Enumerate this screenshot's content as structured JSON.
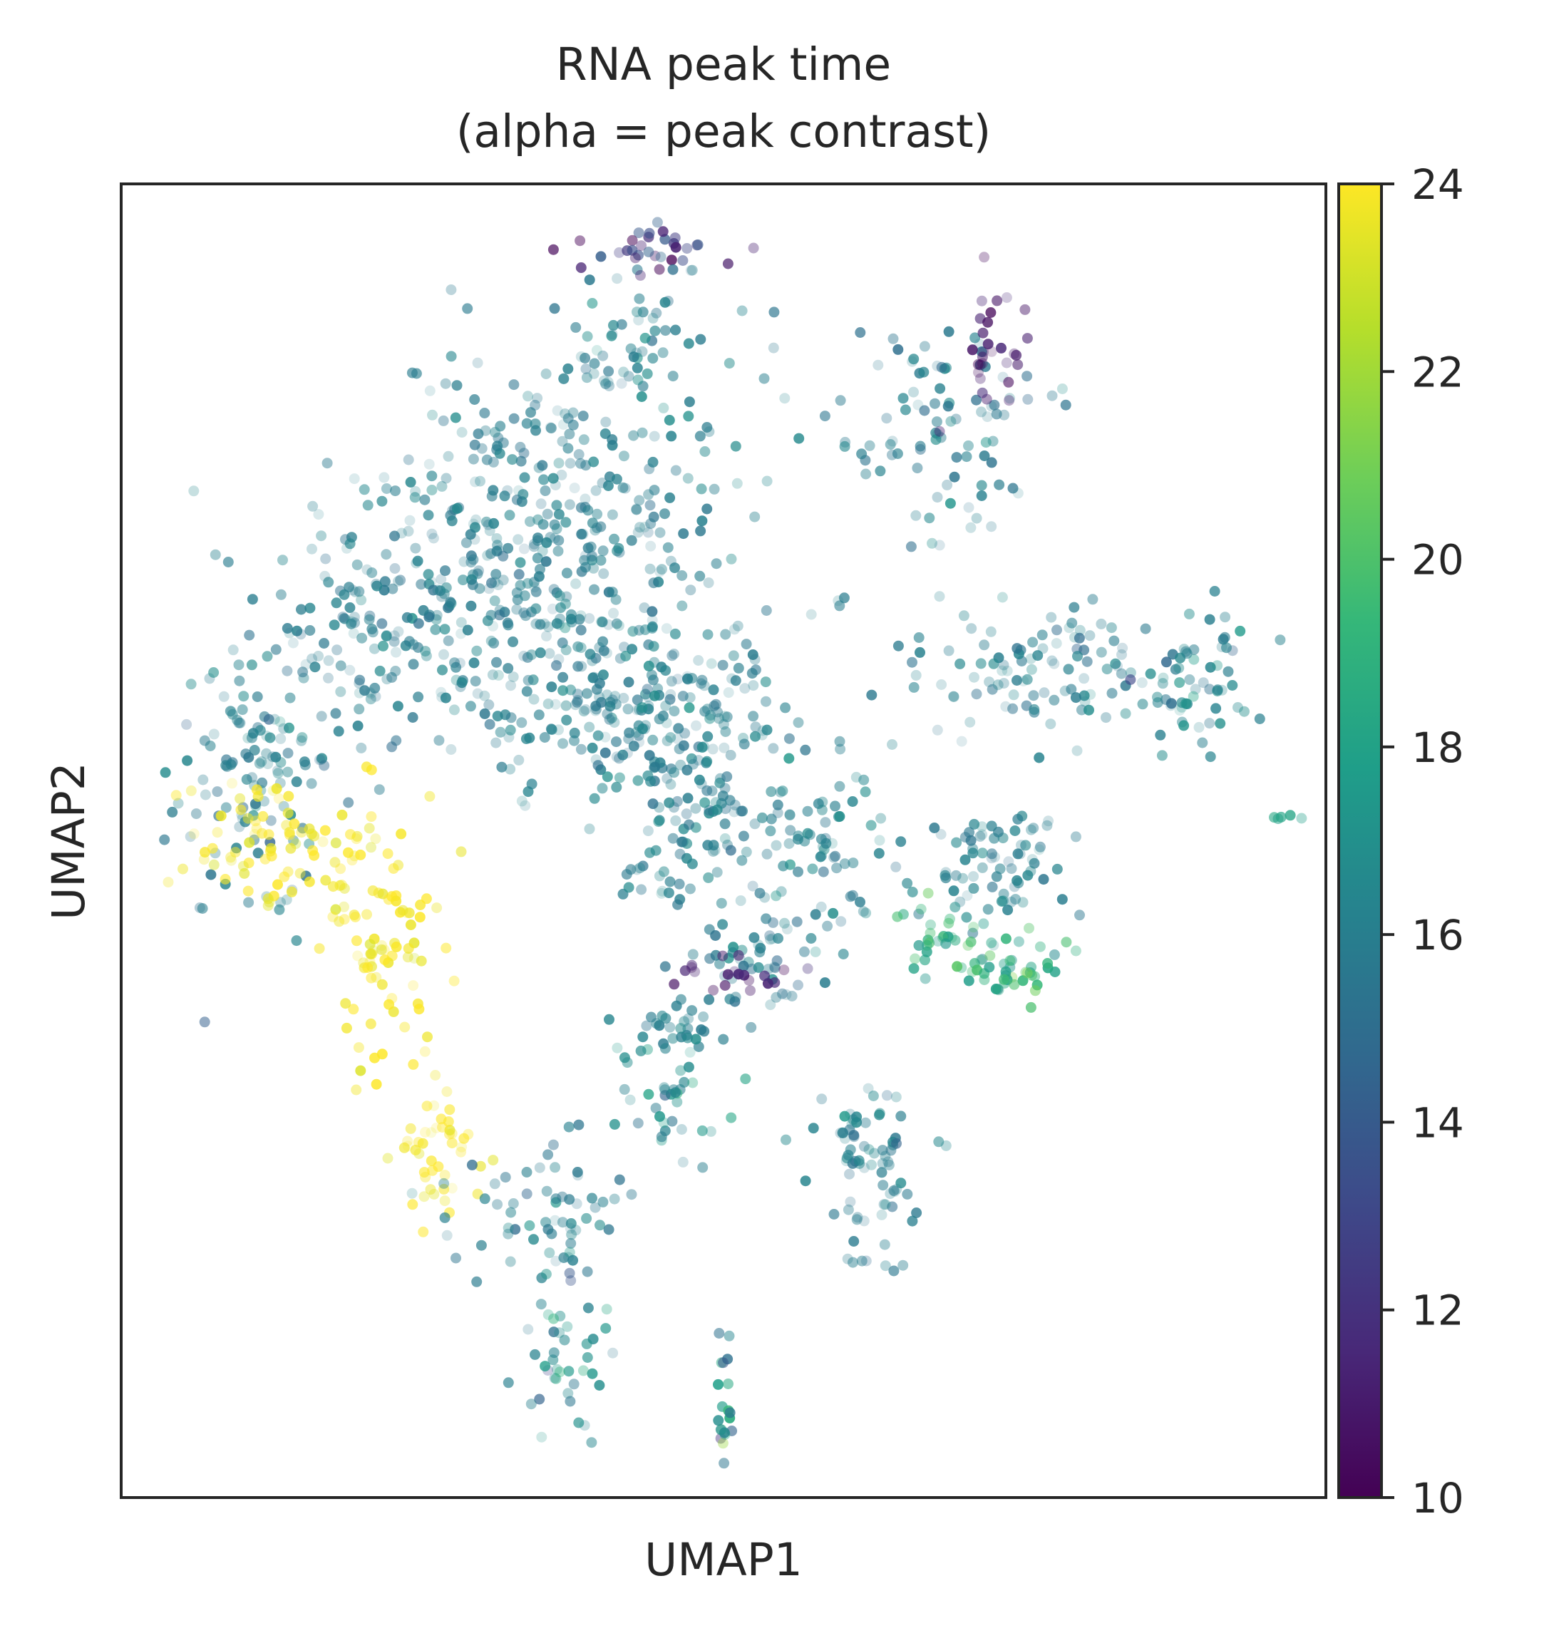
{
  "chart_data": {
    "type": "scatter",
    "title_line1": "RNA peak time",
    "title_line2": "(alpha = peak contrast)",
    "xlabel": "UMAP1",
    "ylabel": "UMAP2",
    "x_ticks": "none",
    "y_ticks": "none",
    "grid": false,
    "xlim": [
      0,
      100
    ],
    "ylim": [
      0,
      100
    ],
    "colorbar": {
      "colormap": "viridis",
      "min": 10,
      "max": 24,
      "ticks": [
        "10",
        "12",
        "14",
        "16",
        "18",
        "20",
        "22",
        "24"
      ],
      "position": "right",
      "stops": [
        "#440154",
        "#482878",
        "#3e4989",
        "#31688e",
        "#26828e",
        "#1f9e89",
        "#35b779",
        "#6ece58",
        "#b5de2b",
        "#fde725"
      ]
    },
    "dominant_value": 16,
    "note_alpha": "point opacity encodes peak contrast",
    "clusters": [
      {
        "center": [
          36,
          74
        ],
        "spread": [
          10,
          8
        ],
        "count": 380,
        "value": 16,
        "value_spread": 0.4,
        "alpha_range": [
          0.15,
          0.85
        ]
      },
      {
        "center": [
          43,
          60
        ],
        "spread": [
          9,
          5
        ],
        "count": 240,
        "value": 16,
        "value_spread": 0.4,
        "alpha_range": [
          0.15,
          0.85
        ]
      },
      {
        "center": [
          22,
          65
        ],
        "spread": [
          8,
          5
        ],
        "count": 170,
        "value": 16,
        "value_spread": 0.5,
        "alpha_range": [
          0.15,
          0.85
        ]
      },
      {
        "center": [
          11,
          55
        ],
        "spread": [
          4,
          6
        ],
        "count": 110,
        "value": 16,
        "value_spread": 0.6,
        "alpha_range": [
          0.2,
          0.85
        ]
      },
      {
        "center": [
          13,
          50
        ],
        "spread": [
          5,
          3
        ],
        "count": 80,
        "value": 23.8,
        "value_spread": 0.3,
        "alpha_range": [
          0.2,
          0.85
        ]
      },
      {
        "center": [
          22,
          42
        ],
        "spread": [
          3,
          6
        ],
        "count": 90,
        "value": 23.8,
        "value_spread": 0.3,
        "alpha_range": [
          0.2,
          0.85
        ]
      },
      {
        "center": [
          27,
          26
        ],
        "spread": [
          3,
          3
        ],
        "count": 45,
        "value": 23.8,
        "value_spread": 0.3,
        "alpha_range": [
          0.15,
          0.7
        ]
      },
      {
        "center": [
          34,
          22
        ],
        "spread": [
          4,
          3
        ],
        "count": 60,
        "value": 16,
        "value_spread": 0.5,
        "alpha_range": [
          0.15,
          0.8
        ]
      },
      {
        "center": [
          37,
          12
        ],
        "spread": [
          2,
          4
        ],
        "count": 45,
        "value": 16.5,
        "value_spread": 1.2,
        "alpha_range": [
          0.2,
          0.85
        ]
      },
      {
        "center": [
          48,
          51
        ],
        "spread": [
          4,
          6
        ],
        "count": 110,
        "value": 16,
        "value_spread": 0.5,
        "alpha_range": [
          0.2,
          0.85
        ]
      },
      {
        "center": [
          58,
          50
        ],
        "spread": [
          3,
          4
        ],
        "count": 60,
        "value": 16,
        "value_spread": 0.5,
        "alpha_range": [
          0.2,
          0.85
        ]
      },
      {
        "center": [
          72,
          48
        ],
        "spread": [
          4,
          3
        ],
        "count": 80,
        "value": 16,
        "value_spread": 0.5,
        "alpha_range": [
          0.15,
          0.85
        ]
      },
      {
        "center": [
          68,
          43
        ],
        "spread": [
          2,
          2
        ],
        "count": 30,
        "value": 19,
        "value_spread": 1.0,
        "alpha_range": [
          0.3,
          0.9
        ]
      },
      {
        "center": [
          74,
          40
        ],
        "spread": [
          3,
          2
        ],
        "count": 45,
        "value": 18.8,
        "value_spread": 1.2,
        "alpha_range": [
          0.3,
          0.9
        ]
      },
      {
        "center": [
          78,
          63
        ],
        "spread": [
          9,
          3
        ],
        "count": 110,
        "value": 16,
        "value_spread": 0.5,
        "alpha_range": [
          0.15,
          0.85
        ]
      },
      {
        "center": [
          89,
          62
        ],
        "spread": [
          3,
          3
        ],
        "count": 55,
        "value": 16.3,
        "value_spread": 0.9,
        "alpha_range": [
          0.15,
          0.85
        ]
      },
      {
        "center": [
          53,
          41
        ],
        "spread": [
          3,
          3
        ],
        "count": 50,
        "value": 16,
        "value_spread": 0.6,
        "alpha_range": [
          0.2,
          0.85
        ]
      },
      {
        "center": [
          46,
          36
        ],
        "spread": [
          2,
          1
        ],
        "count": 25,
        "value": 16,
        "value_spread": 0.3,
        "alpha_range": [
          0.3,
          0.9
        ]
      },
      {
        "center": [
          46,
          31
        ],
        "spread": [
          3,
          3
        ],
        "count": 40,
        "value": 16.8,
        "value_spread": 1.0,
        "alpha_range": [
          0.2,
          0.85
        ]
      },
      {
        "center": [
          62,
          27
        ],
        "spread": [
          3,
          3
        ],
        "count": 55,
        "value": 16,
        "value_spread": 0.6,
        "alpha_range": [
          0.2,
          0.85
        ]
      },
      {
        "center": [
          63,
          21
        ],
        "spread": [
          2,
          3
        ],
        "count": 25,
        "value": 16,
        "value_spread": 0.4,
        "alpha_range": [
          0.2,
          0.8
        ]
      },
      {
        "center": [
          68,
          82
        ],
        "spread": [
          5,
          6
        ],
        "count": 90,
        "value": 16,
        "value_spread": 0.5,
        "alpha_range": [
          0.15,
          0.85
        ]
      },
      {
        "center": [
          44,
          88
        ],
        "spread": [
          5,
          3
        ],
        "count": 55,
        "value": 16,
        "value_spread": 0.6,
        "alpha_range": [
          0.15,
          0.85
        ]
      },
      {
        "center": [
          72,
          88
        ],
        "spread": [
          2.5,
          3
        ],
        "count": 30,
        "value": 10.8,
        "value_spread": 0.6,
        "alpha_range": [
          0.2,
          0.9
        ]
      },
      {
        "center": [
          44,
          95
        ],
        "spread": [
          4,
          1.2
        ],
        "count": 35,
        "value": 12.5,
        "value_spread": 1.5,
        "alpha_range": [
          0.3,
          0.9
        ]
      },
      {
        "center": [
          51,
          40
        ],
        "spread": [
          3,
          1
        ],
        "count": 20,
        "value": 11.2,
        "value_spread": 0.5,
        "alpha_range": [
          0.3,
          0.9
        ]
      },
      {
        "center": [
          50,
          7
        ],
        "spread": [
          0.6,
          3
        ],
        "count": 20,
        "value": 16.5,
        "value_spread": 2.5,
        "alpha_range": [
          0.3,
          0.95
        ]
      },
      {
        "center": [
          97,
          52
        ],
        "spread": [
          1,
          0.4
        ],
        "count": 5,
        "value": 18,
        "value_spread": 0.3,
        "alpha_range": [
          0.3,
          0.9
        ]
      }
    ]
  }
}
